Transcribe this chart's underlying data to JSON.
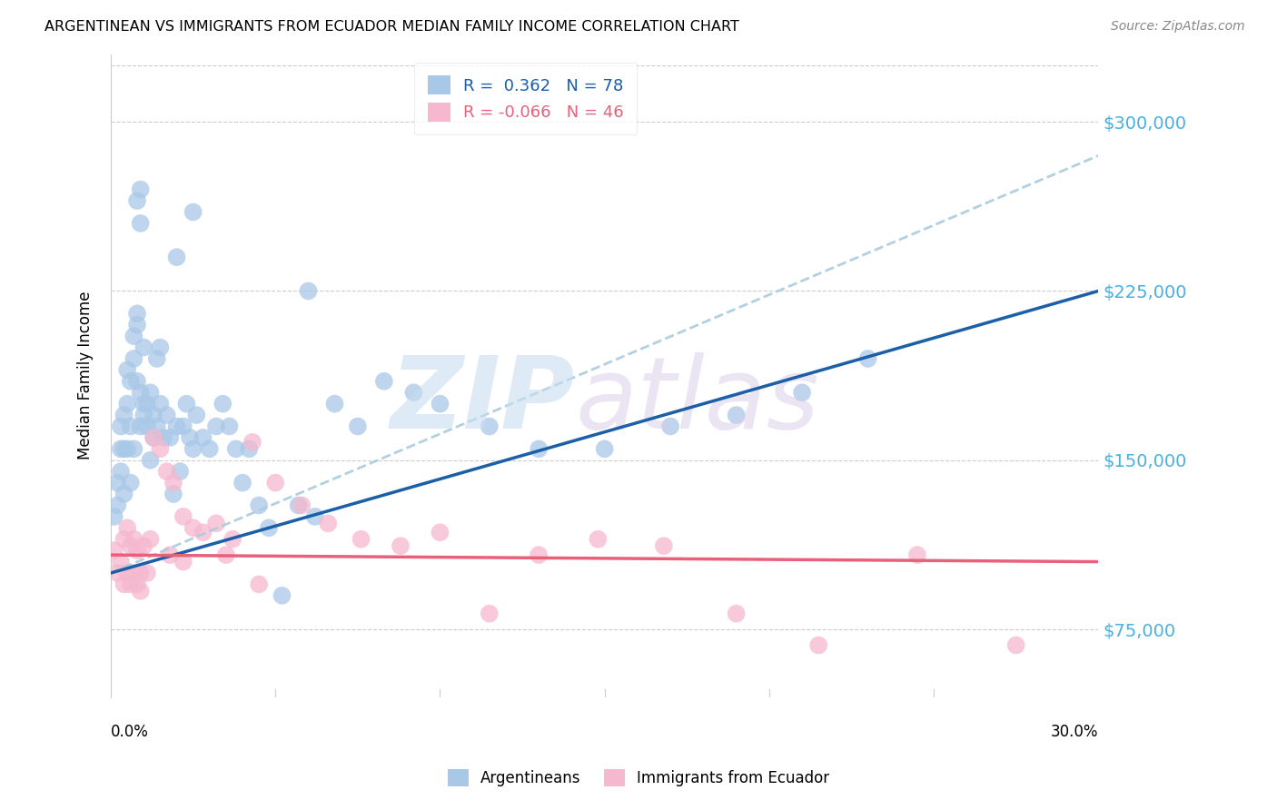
{
  "title": "ARGENTINEAN VS IMMIGRANTS FROM ECUADOR MEDIAN FAMILY INCOME CORRELATION CHART",
  "source": "Source: ZipAtlas.com",
  "ylabel": "Median Family Income",
  "yticks": [
    75000,
    150000,
    225000,
    300000
  ],
  "ytick_labels": [
    "$75,000",
    "$150,000",
    "$225,000",
    "$300,000"
  ],
  "xlim": [
    0.0,
    0.3
  ],
  "ylim": [
    45000,
    330000
  ],
  "legend_r1": "R =  0.362",
  "legend_n1": "N = 78",
  "legend_r2": "R = -0.066",
  "legend_n2": "N = 46",
  "blue_color": "#a8c8e8",
  "blue_line_color": "#1a5fa8",
  "pink_color": "#f5b8ce",
  "pink_line_color": "#e8607a",
  "dashed_line_color": "#aaccdd",
  "blue_line_x0": 0.0,
  "blue_line_y0": 100000,
  "blue_line_x1": 0.3,
  "blue_line_y1": 225000,
  "pink_line_x0": 0.0,
  "pink_line_y0": 108000,
  "pink_line_x1": 0.3,
  "pink_line_y1": 105000,
  "dash_line_x0": 0.0,
  "dash_line_y0": 100000,
  "dash_line_x1": 0.3,
  "dash_line_y1": 285000,
  "argentineans_x": [
    0.001,
    0.002,
    0.002,
    0.003,
    0.003,
    0.003,
    0.004,
    0.004,
    0.004,
    0.005,
    0.005,
    0.005,
    0.006,
    0.006,
    0.006,
    0.007,
    0.007,
    0.007,
    0.008,
    0.008,
    0.008,
    0.009,
    0.009,
    0.009,
    0.01,
    0.01,
    0.01,
    0.011,
    0.011,
    0.012,
    0.012,
    0.013,
    0.013,
    0.014,
    0.014,
    0.015,
    0.015,
    0.016,
    0.017,
    0.018,
    0.019,
    0.02,
    0.021,
    0.022,
    0.023,
    0.024,
    0.025,
    0.026,
    0.028,
    0.03,
    0.032,
    0.034,
    0.036,
    0.038,
    0.04,
    0.042,
    0.045,
    0.048,
    0.052,
    0.057,
    0.062,
    0.068,
    0.075,
    0.083,
    0.092,
    0.1,
    0.115,
    0.13,
    0.15,
    0.17,
    0.19,
    0.21,
    0.23,
    0.008,
    0.009,
    0.02,
    0.025,
    0.06
  ],
  "argentineans_y": [
    125000,
    130000,
    140000,
    155000,
    145000,
    165000,
    135000,
    155000,
    170000,
    155000,
    175000,
    190000,
    140000,
    165000,
    185000,
    155000,
    205000,
    195000,
    215000,
    185000,
    210000,
    165000,
    180000,
    255000,
    170000,
    200000,
    175000,
    165000,
    175000,
    180000,
    150000,
    160000,
    170000,
    165000,
    195000,
    200000,
    175000,
    160000,
    170000,
    160000,
    135000,
    165000,
    145000,
    165000,
    175000,
    160000,
    155000,
    170000,
    160000,
    155000,
    165000,
    175000,
    165000,
    155000,
    140000,
    155000,
    130000,
    120000,
    90000,
    130000,
    125000,
    175000,
    165000,
    185000,
    180000,
    175000,
    165000,
    155000,
    155000,
    165000,
    170000,
    180000,
    195000,
    265000,
    270000,
    240000,
    260000,
    225000
  ],
  "ecuador_x": [
    0.001,
    0.002,
    0.003,
    0.004,
    0.004,
    0.005,
    0.005,
    0.006,
    0.006,
    0.007,
    0.007,
    0.008,
    0.008,
    0.009,
    0.009,
    0.01,
    0.011,
    0.012,
    0.013,
    0.015,
    0.017,
    0.019,
    0.022,
    0.025,
    0.028,
    0.032,
    0.037,
    0.043,
    0.05,
    0.058,
    0.066,
    0.076,
    0.088,
    0.1,
    0.115,
    0.13,
    0.148,
    0.168,
    0.19,
    0.215,
    0.245,
    0.275,
    0.018,
    0.022,
    0.035,
    0.045
  ],
  "ecuador_y": [
    110000,
    100000,
    105000,
    115000,
    95000,
    120000,
    100000,
    95000,
    112000,
    100000,
    115000,
    95000,
    110000,
    100000,
    92000,
    112000,
    100000,
    115000,
    160000,
    155000,
    145000,
    140000,
    125000,
    120000,
    118000,
    122000,
    115000,
    158000,
    140000,
    130000,
    122000,
    115000,
    112000,
    118000,
    82000,
    108000,
    115000,
    112000,
    82000,
    68000,
    108000,
    68000,
    108000,
    105000,
    108000,
    95000
  ]
}
